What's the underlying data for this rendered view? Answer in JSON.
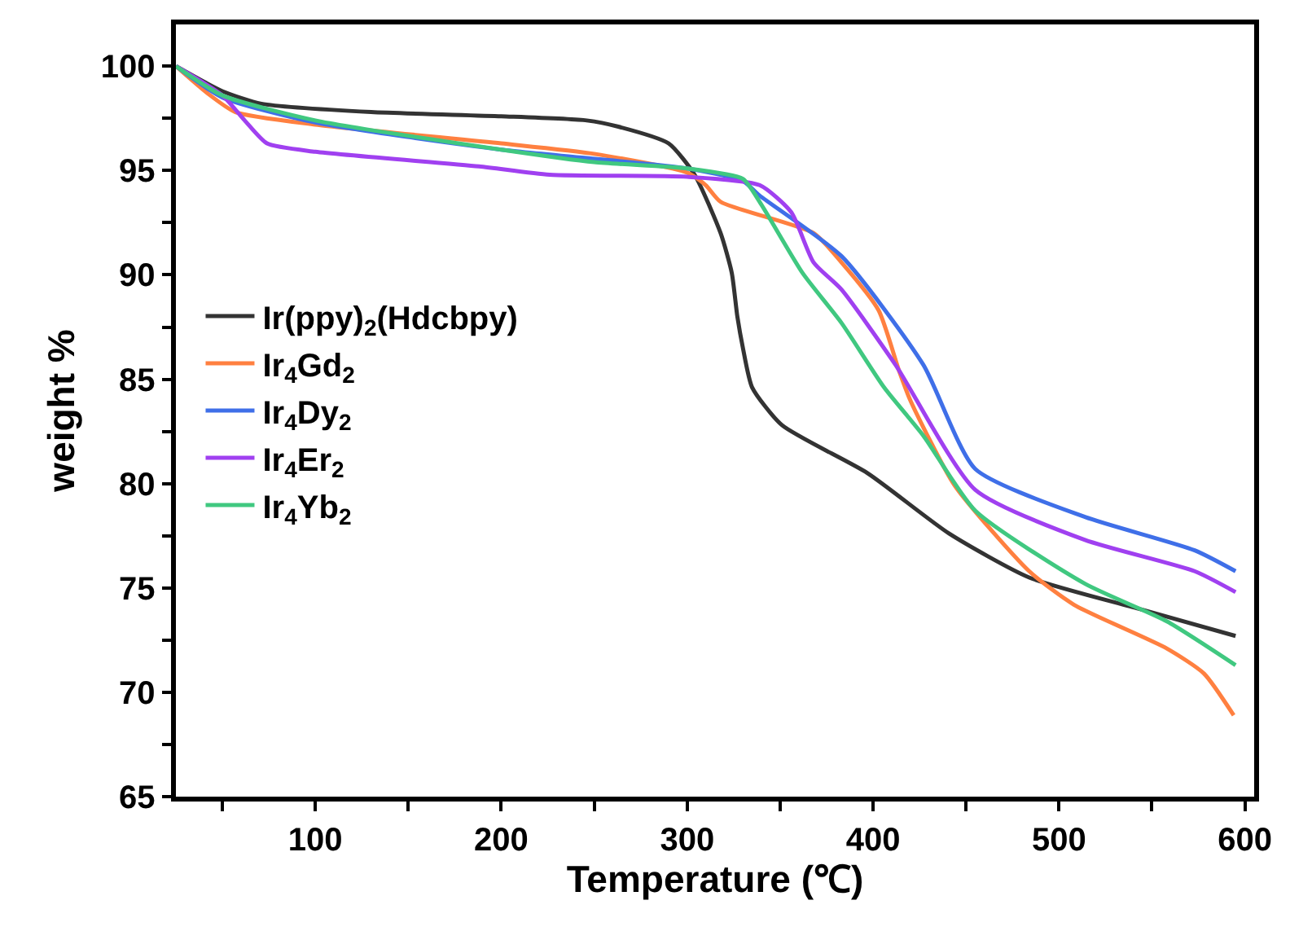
{
  "chart_data": {
    "type": "line",
    "xlabel": "Temperature (℃)",
    "ylabel": "weight %",
    "xlim": [
      25,
      605
    ],
    "ylim": [
      65,
      102
    ],
    "xticks": [
      {
        "value": 50,
        "label": null
      },
      100,
      {
        "value": 150,
        "label": null
      },
      200,
      {
        "value": 250,
        "label": null
      },
      300,
      {
        "value": 350,
        "label": null
      },
      400,
      {
        "value": 450,
        "label": null
      },
      500,
      {
        "value": 550,
        "label": null
      },
      600
    ],
    "yticks": [
      65,
      {
        "value": 67.5,
        "label": null
      },
      70,
      {
        "value": 72.5,
        "label": null
      },
      75,
      {
        "value": 77.5,
        "label": null
      },
      80,
      {
        "value": 82.5,
        "label": null
      },
      85,
      {
        "value": 87.5,
        "label": null
      },
      90,
      {
        "value": 92.5,
        "label": null
      },
      95,
      {
        "value": 97.5,
        "label": null
      },
      100
    ],
    "grid": false,
    "legend": "left",
    "line_style": "solid",
    "marker": "none",
    "series": [
      {
        "name": "Ir(ppy)$_{2}$(Hdcbpy)",
        "color": "#333333",
        "x": [
          25,
          50,
          71,
          130,
          200,
          246,
          263,
          290,
          304,
          318,
          324,
          327,
          330,
          335,
          351,
          397,
          441,
          484,
          543,
          595
        ],
        "values": [
          100,
          98.8,
          98.2,
          97.8,
          97.6,
          97.4,
          97.1,
          96.3,
          94.8,
          92,
          90.1,
          88,
          86.5,
          84.6,
          82.8,
          80.5,
          77.6,
          75.5,
          74,
          72.7
        ]
      },
      {
        "name": "Ir$_{4}$Gd$_{2}$",
        "color": "#ff8040",
        "x": [
          25,
          42,
          57,
          100,
          200,
          250,
          300,
          310,
          318,
          368,
          383,
          403,
          414,
          420,
          444,
          484,
          508,
          558,
          578,
          594
        ],
        "values": [
          100,
          98.7,
          97.8,
          97.2,
          96.3,
          95.8,
          94.9,
          94.3,
          93.5,
          92,
          90.6,
          88.3,
          85.4,
          84,
          79.9,
          75.8,
          74.2,
          72.1,
          70.9,
          68.9
        ]
      },
      {
        "name": "Ir$_{4}$Dy$_{2}$",
        "color": "#3f6fe8",
        "x": [
          25,
          50,
          100,
          200,
          300,
          330,
          339,
          383,
          427,
          455,
          514,
          573,
          595
        ],
        "values": [
          100,
          98.5,
          97.3,
          96,
          95.1,
          94.5,
          93.8,
          90.9,
          85.7,
          80.7,
          78.4,
          76.8,
          75.8
        ]
      },
      {
        "name": "Ir$_{4}$Er$_{2}$",
        "color": "#a040f0",
        "x": [
          25,
          50,
          62,
          74,
          100,
          188,
          226,
          300,
          339,
          356,
          368,
          383,
          412,
          455,
          514,
          573,
          595
        ],
        "values": [
          100,
          98.6,
          97.4,
          96.3,
          95.9,
          95.2,
          94.8,
          94.7,
          94.3,
          93,
          90.6,
          89.3,
          85.7,
          79.7,
          77.3,
          75.8,
          74.8
        ]
      },
      {
        "name": "Ir$_{4}$Yb$_{2}$",
        "color": "#40c880",
        "x": [
          25,
          50,
          100,
          200,
          250,
          300,
          330,
          339,
          362,
          383,
          406,
          427,
          455,
          514,
          558,
          595
        ],
        "values": [
          100,
          98.6,
          97.4,
          96,
          95.4,
          95.1,
          94.6,
          93.5,
          90.1,
          87.7,
          84.6,
          82.3,
          78.7,
          75.2,
          73.4,
          71.3
        ]
      }
    ]
  }
}
